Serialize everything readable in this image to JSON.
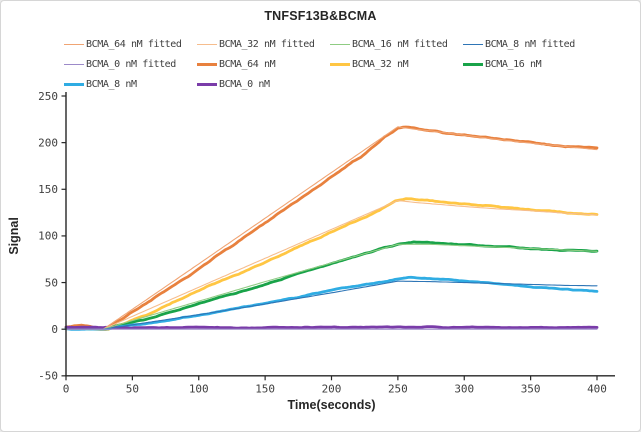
{
  "panel": {
    "background": "#ffffff",
    "border_color": "#d6d6d6"
  },
  "chart_data": {
    "type": "line",
    "title": "TNFSF13B&BCMA",
    "xlabel": "Time(seconds)",
    "ylabel": "Signal",
    "xlim": [
      0,
      400
    ],
    "ylim": [
      -50,
      250
    ],
    "xticks": [
      0,
      50,
      100,
      150,
      200,
      250,
      300,
      350,
      400
    ],
    "yticks": [
      -50,
      0,
      50,
      100,
      150,
      200,
      250
    ],
    "grid": false,
    "legend_position": "top",
    "axis_color": "#262626",
    "tick_label_color": "#3f3f3f",
    "series": [
      {
        "name": "BCMA_64 nM fitted",
        "color": "#F0A473",
        "style": "fitted",
        "line_width": 1.1,
        "noise": 0,
        "seed": 11,
        "points": [
          [
            0,
            0
          ],
          [
            28,
            0
          ],
          [
            60,
            31
          ],
          [
            100,
            70
          ],
          [
            150,
            119
          ],
          [
            200,
            168
          ],
          [
            250,
            217
          ],
          [
            262,
            214.5
          ],
          [
            275,
            212.5
          ],
          [
            300,
            208
          ],
          [
            325,
            203.5
          ],
          [
            350,
            199.5
          ],
          [
            375,
            196
          ],
          [
            400,
            192.5
          ]
        ]
      },
      {
        "name": "BCMA_32 nM fitted",
        "color": "#F6BD8D",
        "style": "fitted",
        "line_width": 1.1,
        "noise": 0,
        "seed": 12,
        "points": [
          [
            0,
            0
          ],
          [
            28,
            0
          ],
          [
            100,
            45
          ],
          [
            150,
            76
          ],
          [
            200,
            107
          ],
          [
            250,
            138
          ],
          [
            262,
            136
          ],
          [
            275,
            134.5
          ],
          [
            300,
            131.5
          ],
          [
            325,
            129
          ],
          [
            350,
            127
          ],
          [
            375,
            124.5
          ],
          [
            400,
            122.5
          ]
        ]
      },
      {
        "name": "BCMA_16 nM fitted",
        "color": "#8FCC83",
        "style": "fitted",
        "line_width": 1.1,
        "noise": 0,
        "seed": 13,
        "points": [
          [
            0,
            0
          ],
          [
            28,
            0
          ],
          [
            100,
            30
          ],
          [
            150,
            51
          ],
          [
            200,
            71
          ],
          [
            250,
            91
          ],
          [
            275,
            91
          ],
          [
            300,
            89.5
          ],
          [
            325,
            88
          ],
          [
            350,
            86.5
          ],
          [
            375,
            85
          ],
          [
            400,
            83.5
          ]
        ]
      },
      {
        "name": "BCMA_8 nM fitted",
        "color": "#2E75B6",
        "style": "fitted",
        "line_width": 1.1,
        "noise": 0,
        "seed": 14,
        "points": [
          [
            0,
            0
          ],
          [
            28,
            0
          ],
          [
            100,
            15.5
          ],
          [
            150,
            27
          ],
          [
            200,
            39
          ],
          [
            250,
            51.5
          ],
          [
            275,
            51
          ],
          [
            300,
            50
          ],
          [
            325,
            49
          ],
          [
            350,
            48
          ],
          [
            375,
            47
          ],
          [
            400,
            46.5
          ]
        ]
      },
      {
        "name": "BCMA_0 nM fitted",
        "color": "#9C8AC9",
        "style": "fitted",
        "line_width": 1.1,
        "noise": 0,
        "seed": 15,
        "points": [
          [
            0,
            0
          ],
          [
            400,
            0
          ]
        ]
      },
      {
        "name": "BCMA_64 nM",
        "color": "#E8813E",
        "style": "measured",
        "line_width": 2.8,
        "noise": 1.4,
        "seed": 1,
        "points": [
          [
            0,
            3
          ],
          [
            6,
            3.5
          ],
          [
            12,
            4.5
          ],
          [
            18,
            3
          ],
          [
            24,
            0.5
          ],
          [
            30,
            0
          ],
          [
            60,
            27
          ],
          [
            100,
            65
          ],
          [
            150,
            114
          ],
          [
            200,
            164
          ],
          [
            225,
            188
          ],
          [
            240,
            205
          ],
          [
            250,
            216
          ],
          [
            256,
            217.5
          ],
          [
            265,
            215
          ],
          [
            280,
            212
          ],
          [
            300,
            208.5
          ],
          [
            325,
            204
          ],
          [
            350,
            200
          ],
          [
            375,
            196.5
          ],
          [
            400,
            194
          ]
        ]
      },
      {
        "name": "BCMA_32 nM",
        "color": "#FFC643",
        "style": "measured",
        "line_width": 2.8,
        "noise": 1.2,
        "seed": 2,
        "points": [
          [
            0,
            1
          ],
          [
            10,
            1.5
          ],
          [
            20,
            0
          ],
          [
            26,
            -0.5
          ],
          [
            32,
            0
          ],
          [
            60,
            15
          ],
          [
            100,
            41
          ],
          [
            150,
            72
          ],
          [
            200,
            104
          ],
          [
            230,
            123
          ],
          [
            248,
            138
          ],
          [
            256,
            140.5
          ],
          [
            268,
            139
          ],
          [
            285,
            136.5
          ],
          [
            300,
            134.5
          ],
          [
            325,
            131.5
          ],
          [
            350,
            128.5
          ],
          [
            375,
            125.5
          ],
          [
            400,
            123
          ]
        ]
      },
      {
        "name": "BCMA_16 nM",
        "color": "#19A349",
        "style": "measured",
        "line_width": 2.8,
        "noise": 1.0,
        "seed": 3,
        "points": [
          [
            0,
            1
          ],
          [
            15,
            0.5
          ],
          [
            28,
            0
          ],
          [
            60,
            10
          ],
          [
            100,
            27
          ],
          [
            150,
            48
          ],
          [
            200,
            70
          ],
          [
            230,
            83
          ],
          [
            250,
            91
          ],
          [
            262,
            93.5
          ],
          [
            275,
            93
          ],
          [
            300,
            91
          ],
          [
            325,
            88.5
          ],
          [
            350,
            86.5
          ],
          [
            375,
            84.5
          ],
          [
            400,
            83
          ]
        ]
      },
      {
        "name": "BCMA_8 nM",
        "color": "#2FACE3",
        "style": "measured",
        "line_width": 2.8,
        "noise": 1.0,
        "seed": 4,
        "points": [
          [
            0,
            0.5
          ],
          [
            15,
            -0.5
          ],
          [
            28,
            0
          ],
          [
            60,
            6
          ],
          [
            100,
            15
          ],
          [
            150,
            28
          ],
          [
            200,
            42
          ],
          [
            230,
            49
          ],
          [
            250,
            54
          ],
          [
            258,
            55.5
          ],
          [
            270,
            54.5
          ],
          [
            285,
            53
          ],
          [
            300,
            51.5
          ],
          [
            325,
            48.5
          ],
          [
            350,
            45.5
          ],
          [
            375,
            43
          ],
          [
            400,
            40.5
          ]
        ]
      },
      {
        "name": "BCMA_0 nM",
        "color": "#7A3CA9",
        "style": "measured",
        "line_width": 2.8,
        "noise": 0.9,
        "seed": 5,
        "points": [
          [
            0,
            1.5
          ],
          [
            50,
            1.8
          ],
          [
            100,
            2
          ],
          [
            150,
            1.6
          ],
          [
            200,
            2
          ],
          [
            250,
            2.2
          ],
          [
            300,
            2
          ],
          [
            350,
            2
          ],
          [
            400,
            2
          ]
        ]
      }
    ]
  }
}
